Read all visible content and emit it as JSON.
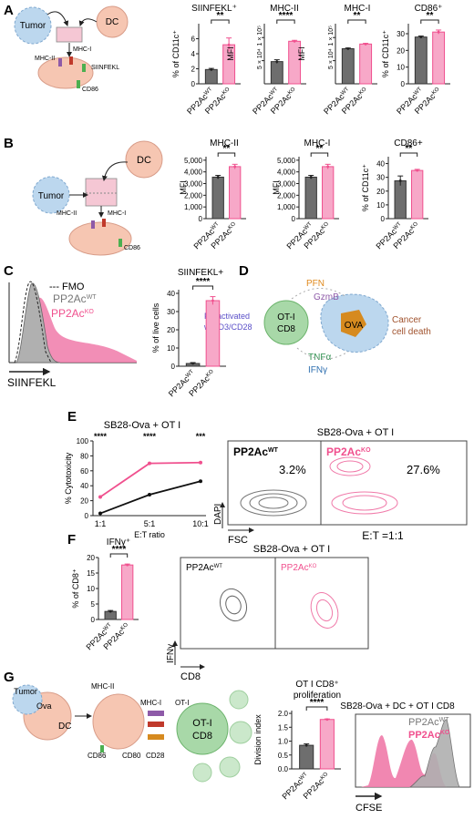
{
  "panels": {
    "A": "A",
    "B": "B",
    "C": "C",
    "D": "D",
    "E": "E",
    "F": "F",
    "G": "G"
  },
  "colors": {
    "wt": "#6e6e6e",
    "ko": "#f0508e",
    "ko_light": "#f7a8c8",
    "dc": "#f6c6b2",
    "tumor": "#bcd7ee",
    "tcell": "#a8d8a8",
    "ova": "#d68a1f",
    "pink_well": "#f5c7d4"
  },
  "schematic_labels": {
    "tumor": "Tumor",
    "dc": "DC",
    "mhc2": "MHC-II",
    "mhc1": "MHC-I",
    "siinfekl": "SIINFEKL",
    "cd86": "CD86",
    "d_pfn": "PFN",
    "d_gzmb": "GzmB",
    "d_preact1": "Preactivated",
    "d_preact2": "w/CD3/CD28",
    "d_oti": "OT-I",
    "d_cd8": "CD8",
    "d_ova": "OVA",
    "d_tnfa": "TNFα",
    "d_ifng": "IFNγ",
    "d_death1": "Cancer",
    "d_death2": "cell death",
    "g_ova": "Ova",
    "g_oti": "OT-I",
    "g_cd80": "CD80",
    "g_cd28": "CD28"
  },
  "flow": {
    "c_fmo": "--- FMO",
    "c_wt": "PP2Ac",
    "c_ko": "PP2Ac",
    "wt_sup": "WT",
    "ko_sup": "KO",
    "c_axis": "SIINFEKL",
    "e_title": "SB28-Ova + OT I",
    "e_pct_wt": "3.2%",
    "e_pct_ko": "27.6%",
    "e_ratio": "E:T =1:1",
    "e_y": "DAPI",
    "e_x": "FSC",
    "f_title": "SB28-Ova + OT I",
    "f_y": "IFNγ",
    "f_x": "CD8",
    "g_title": "SB28-Ova + DC + OT I CD8",
    "g_x": "CFSE"
  },
  "chart_data": [
    {
      "id": "A1",
      "type": "bar",
      "title": "SIINFEKL⁺",
      "ylabel": "% of CD11c⁺",
      "categories": [
        "PP2Ac^WT",
        "PP2Ac^KO"
      ],
      "values": [
        1.9,
        5.2
      ],
      "errors": [
        0.15,
        0.9
      ],
      "ylim": [
        0,
        8
      ],
      "yticks": [
        0,
        2,
        4,
        6
      ],
      "sig": "**"
    },
    {
      "id": "A2",
      "type": "bar",
      "title": "MHC-II",
      "ylabel": "MFI",
      "categories": [
        "PP2Ac^WT",
        "PP2Ac^KO"
      ],
      "values": [
        4.8,
        9.2
      ],
      "errors": [
        0.4,
        0.2
      ],
      "ylim": [
        0,
        13
      ],
      "yticks": [
        5,
        10
      ],
      "yticklabels": [
        "5 × 10⁴",
        "1 × 10⁵"
      ],
      "sig": "****"
    },
    {
      "id": "A3",
      "type": "bar",
      "title": "MHC-I",
      "ylabel": "MFI",
      "categories": [
        "PP2Ac^WT",
        "PP2Ac^KO"
      ],
      "values": [
        7.6,
        8.6
      ],
      "errors": [
        0.15,
        0.15
      ],
      "ylim": [
        0,
        13
      ],
      "yticks": [
        5,
        10
      ],
      "yticklabels": [
        "5 × 10⁴",
        "1 × 10⁵"
      ],
      "sig": "**"
    },
    {
      "id": "A4",
      "type": "bar",
      "title": "CD86⁺",
      "ylabel": "% of CD11c⁺",
      "categories": [
        "PP2Ac^WT",
        "PP2Ac^KO"
      ],
      "values": [
        28,
        31
      ],
      "errors": [
        0.6,
        1.2
      ],
      "ylim": [
        0,
        36
      ],
      "yticks": [
        0,
        10,
        20,
        30
      ],
      "sig": "**"
    },
    {
      "id": "B1",
      "type": "bar",
      "title": "MHC-II",
      "ylabel": "MFI",
      "categories": [
        "PP2Ac^WT",
        "PP2Ac^KO"
      ],
      "values": [
        3550,
        4450
      ],
      "errors": [
        150,
        200
      ],
      "ylim": [
        0,
        5300
      ],
      "yticks": [
        0,
        1000,
        2000,
        3000,
        4000,
        5000
      ],
      "yticklabels": [
        "0",
        "1,000",
        "2,000",
        "3,000",
        "4,000",
        "5,000"
      ],
      "sig": "**"
    },
    {
      "id": "B2",
      "type": "bar",
      "title": "MHC-I",
      "ylabel": "MFI",
      "categories": [
        "PP2Ac^WT",
        "PP2Ac^KO"
      ],
      "values": [
        3550,
        4450
      ],
      "errors": [
        150,
        200
      ],
      "ylim": [
        0,
        5300
      ],
      "yticks": [
        0,
        1000,
        2000,
        3000,
        4000,
        5000
      ],
      "yticklabels": [
        "0",
        "1,000",
        "2,000",
        "3,000",
        "4,000",
        "5,000"
      ],
      "sig": "**"
    },
    {
      "id": "B3",
      "type": "bar",
      "title": "CD86+",
      "ylabel": "% of CD11c⁺",
      "categories": [
        "PP2Ac^WT",
        "PP2Ac^KO"
      ],
      "values": [
        27.5,
        35
      ],
      "errors": [
        3.5,
        0.8
      ],
      "ylim": [
        0,
        45
      ],
      "yticks": [
        0,
        10,
        20,
        30,
        40
      ],
      "sig": "**"
    },
    {
      "id": "C1",
      "type": "bar",
      "title": "SIINFEKL+",
      "ylabel": "% of live cells",
      "categories": [
        "PP2Ac^WT",
        "PP2Ac^KO"
      ],
      "values": [
        1.5,
        36
      ],
      "errors": [
        0.5,
        2.2
      ],
      "ylim": [
        0,
        42
      ],
      "yticks": [
        0,
        10,
        20,
        30,
        40
      ],
      "sig": "****"
    },
    {
      "id": "E1",
      "type": "line",
      "title": "SB28-Ova + OT I",
      "xlabel": "E:T ratio",
      "ylabel": "% Cytotoxicity",
      "categories": [
        "1:1",
        "5:1",
        "10:1"
      ],
      "series": [
        {
          "name": "PP2Ac^KO",
          "values": [
            25,
            70,
            71
          ]
        },
        {
          "name": "PP2Ac^WT",
          "values": [
            3,
            28,
            46
          ]
        }
      ],
      "ylim": [
        0,
        100
      ],
      "yticks": [
        0,
        20,
        40,
        60,
        80,
        100
      ],
      "sig": [
        "****",
        "****",
        "***"
      ]
    },
    {
      "id": "F1",
      "type": "bar",
      "title": "IFNγ⁺",
      "ylabel": "% of CD8⁺",
      "categories": [
        "PP2Ac^WT",
        "PP2Ac^KO"
      ],
      "values": [
        2.6,
        17.6
      ],
      "errors": [
        0.3,
        0.3
      ],
      "ylim": [
        0,
        20
      ],
      "yticks": [
        0,
        5,
        10,
        15,
        20
      ],
      "sig": "****"
    },
    {
      "id": "G1",
      "type": "bar",
      "title": "OT I CD8⁺ proliferation",
      "ylabel": "Division index",
      "categories": [
        "PP2Ac^WT",
        "PP2Ac^KO"
      ],
      "values": [
        0.85,
        1.78
      ],
      "errors": [
        0.05,
        0.02
      ],
      "ylim": [
        0,
        2.1
      ],
      "yticks": [
        0,
        0.5,
        1,
        1.5,
        2
      ],
      "yticklabels": [
        "0.0",
        "0.5",
        "1.0",
        "1.5",
        "2.0"
      ],
      "sig": "****"
    }
  ]
}
